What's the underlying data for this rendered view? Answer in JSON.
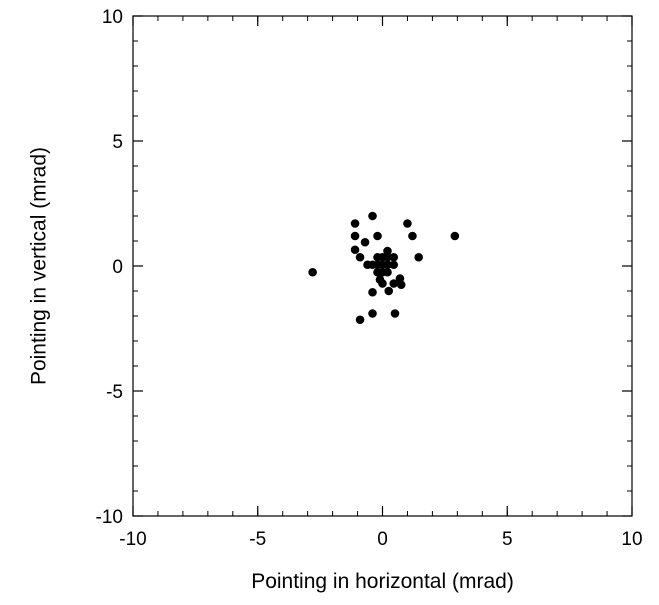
{
  "chart_data": {
    "type": "scatter",
    "title": "",
    "xlabel": "Pointing in horizontal (mrad)",
    "ylabel": "Pointing in vertical (mrad)",
    "xlim": [
      -10,
      10
    ],
    "ylim": [
      -10,
      10
    ],
    "x_ticks": [
      -10,
      -5,
      0,
      5,
      10
    ],
    "y_ticks": [
      -10,
      -5,
      0,
      5,
      10
    ],
    "x_tick_labels": [
      "-10",
      "-5",
      "0",
      "5",
      "10"
    ],
    "y_tick_labels": [
      "-10",
      "-5",
      "0",
      "5",
      "10"
    ],
    "minor_tick_step": 1,
    "grid": false,
    "marker_color": "#000000",
    "points": [
      {
        "x": -2.8,
        "y": -0.25
      },
      {
        "x": -1.1,
        "y": 1.7
      },
      {
        "x": -1.1,
        "y": 1.2
      },
      {
        "x": -1.1,
        "y": 0.65
      },
      {
        "x": -0.9,
        "y": 0.35
      },
      {
        "x": -0.9,
        "y": -2.15
      },
      {
        "x": -0.7,
        "y": 0.95
      },
      {
        "x": -0.6,
        "y": 0.05
      },
      {
        "x": -0.4,
        "y": 2.0
      },
      {
        "x": -0.4,
        "y": 0.05
      },
      {
        "x": -0.4,
        "y": -1.05
      },
      {
        "x": -0.4,
        "y": -1.9
      },
      {
        "x": -0.2,
        "y": 1.2
      },
      {
        "x": -0.2,
        "y": 0.35
      },
      {
        "x": -0.2,
        "y": 0.05
      },
      {
        "x": -0.2,
        "y": -0.25
      },
      {
        "x": -0.1,
        "y": -0.55
      },
      {
        "x": 0.0,
        "y": 0.35
      },
      {
        "x": 0.0,
        "y": 0.05
      },
      {
        "x": 0.0,
        "y": -0.25
      },
      {
        "x": 0.0,
        "y": -0.7
      },
      {
        "x": 0.2,
        "y": 0.6
      },
      {
        "x": 0.2,
        "y": 0.35
      },
      {
        "x": 0.2,
        "y": 0.05
      },
      {
        "x": 0.2,
        "y": -0.25
      },
      {
        "x": 0.25,
        "y": -1.0
      },
      {
        "x": 0.45,
        "y": 0.35
      },
      {
        "x": 0.45,
        "y": 0.05
      },
      {
        "x": 0.45,
        "y": -0.7
      },
      {
        "x": 0.5,
        "y": -1.9
      },
      {
        "x": 0.7,
        "y": -0.5
      },
      {
        "x": 0.75,
        "y": -0.75
      },
      {
        "x": 1.0,
        "y": 1.7
      },
      {
        "x": 1.2,
        "y": 1.2
      },
      {
        "x": 1.45,
        "y": 0.35
      },
      {
        "x": 2.9,
        "y": 1.2
      }
    ]
  }
}
